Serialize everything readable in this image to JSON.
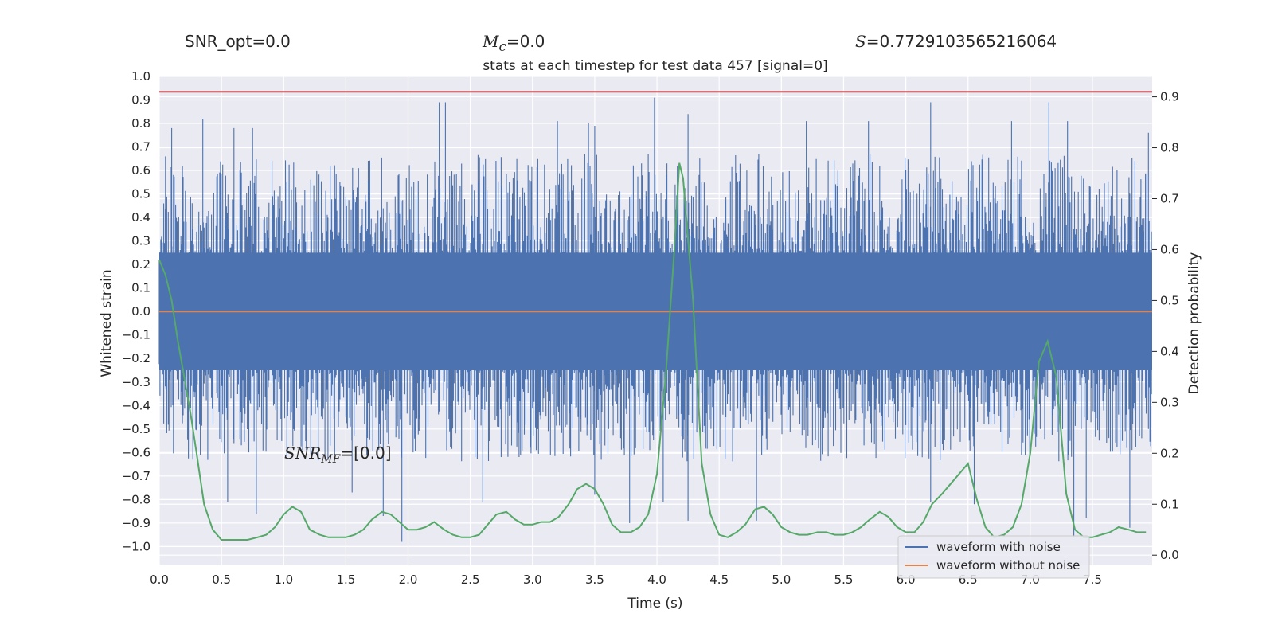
{
  "header": {
    "snr_opt": "SNR_opt=0.0",
    "mc_symbol": "M",
    "mc_sub": "c",
    "mc_value": "=0.0",
    "s_symbol": "S",
    "s_value": "=0.7729103565216064"
  },
  "chart_data": {
    "type": "line",
    "title": "stats at each timestep for test data 457 [signal=0]",
    "xlabel": "Time (s)",
    "ylabel": "Whitened strain",
    "y2label": "Detection probability",
    "xlim": [
      0,
      7.98
    ],
    "ylim": [
      -1.08,
      1.0
    ],
    "y2lim": [
      -0.02,
      0.94
    ],
    "x_ticks": [
      "0.0",
      "0.5",
      "1.0",
      "1.5",
      "2.0",
      "2.5",
      "3.0",
      "3.5",
      "4.0",
      "4.5",
      "5.0",
      "5.5",
      "6.0",
      "6.5",
      "7.0",
      "7.5"
    ],
    "y_ticks": [
      "1.0",
      "0.9",
      "0.8",
      "0.7",
      "0.6",
      "0.5",
      "0.4",
      "0.3",
      "0.2",
      "0.1",
      "0.0",
      "−0.1",
      "−0.2",
      "−0.3",
      "−0.4",
      "−0.5",
      "−0.6",
      "−0.7",
      "−0.8",
      "−0.9",
      "−1.0"
    ],
    "y2_ticks": [
      "0.9",
      "0.8",
      "0.7",
      "0.6",
      "0.5",
      "0.4",
      "0.3",
      "0.2",
      "0.1",
      "0.0"
    ],
    "threshold": 0.91,
    "annotation": {
      "prefix": "SNR",
      "sub": "MF",
      "value": "=[0.0]"
    },
    "legend_position": "lower-right",
    "grid": true,
    "colors": {
      "noise": "#4c72b0",
      "clean": "#dd8452",
      "prob": "#55a868",
      "threshold": "#c44e52",
      "plot_bg": "#eaeaf2"
    },
    "series": [
      {
        "name": "waveform with noise",
        "axis": "left",
        "kind": "noise",
        "max_spikes": [
          [
            0.05,
            0.66
          ],
          [
            0.1,
            0.78
          ],
          [
            0.35,
            0.82
          ],
          [
            0.6,
            0.78
          ],
          [
            0.75,
            0.78
          ],
          [
            2.25,
            0.89
          ],
          [
            2.3,
            0.89
          ],
          [
            3.2,
            0.81
          ],
          [
            3.45,
            0.8
          ],
          [
            3.5,
            0.79
          ],
          [
            3.98,
            0.91
          ],
          [
            4.25,
            0.84
          ],
          [
            5.2,
            0.81
          ],
          [
            5.7,
            0.81
          ],
          [
            6.2,
            0.89
          ],
          [
            6.85,
            0.81
          ],
          [
            7.15,
            0.89
          ],
          [
            7.3,
            0.81
          ],
          [
            7.95,
            0.76
          ]
        ],
        "min_spikes": [
          [
            0.55,
            -0.81
          ],
          [
            0.78,
            -0.86
          ],
          [
            1.55,
            -0.77
          ],
          [
            1.8,
            -0.87
          ],
          [
            1.95,
            -0.98
          ],
          [
            2.6,
            -0.81
          ],
          [
            3.5,
            -0.78
          ],
          [
            3.78,
            -0.9
          ],
          [
            4.05,
            -0.81
          ],
          [
            4.25,
            -0.89
          ],
          [
            4.8,
            -0.89
          ],
          [
            6.2,
            -0.81
          ],
          [
            6.55,
            -0.82
          ],
          [
            7.35,
            -0.96
          ],
          [
            7.45,
            -0.88
          ],
          [
            7.8,
            -0.92
          ]
        ]
      },
      {
        "name": "waveform without noise",
        "axis": "left",
        "x": [
          0,
          7.98
        ],
        "y": [
          0,
          0
        ]
      },
      {
        "name": "detection probability",
        "axis": "right",
        "x": [
          0,
          0.05,
          0.1,
          0.15,
          0.2,
          0.25,
          0.3,
          0.36,
          0.43,
          0.5,
          0.57,
          0.64,
          0.71,
          0.79,
          0.86,
          0.93,
          1.0,
          1.07,
          1.14,
          1.21,
          1.29,
          1.36,
          1.43,
          1.5,
          1.57,
          1.64,
          1.71,
          1.79,
          1.86,
          1.93,
          2.0,
          2.07,
          2.14,
          2.21,
          2.29,
          2.36,
          2.43,
          2.5,
          2.57,
          2.64,
          2.71,
          2.79,
          2.86,
          2.93,
          3.0,
          3.07,
          3.14,
          3.21,
          3.29,
          3.36,
          3.43,
          3.5,
          3.57,
          3.64,
          3.71,
          3.79,
          3.86,
          3.93,
          4.0,
          4.07,
          4.14,
          4.18,
          4.21,
          4.29,
          4.36,
          4.43,
          4.5,
          4.57,
          4.64,
          4.71,
          4.79,
          4.86,
          4.93,
          5.0,
          5.07,
          5.14,
          5.21,
          5.29,
          5.36,
          5.43,
          5.5,
          5.57,
          5.64,
          5.71,
          5.79,
          5.86,
          5.93,
          6.0,
          6.07,
          6.14,
          6.21,
          6.29,
          6.36,
          6.43,
          6.5,
          6.57,
          6.64,
          6.71,
          6.79,
          6.86,
          6.93,
          7.0,
          7.07,
          7.14,
          7.21,
          7.29,
          7.36,
          7.43,
          7.5,
          7.57,
          7.64,
          7.71,
          7.79,
          7.86,
          7.93
        ],
        "y": [
          0.58,
          0.55,
          0.5,
          0.42,
          0.35,
          0.28,
          0.2,
          0.1,
          0.05,
          0.03,
          0.03,
          0.03,
          0.03,
          0.035,
          0.04,
          0.055,
          0.08,
          0.095,
          0.085,
          0.05,
          0.04,
          0.035,
          0.035,
          0.035,
          0.04,
          0.05,
          0.07,
          0.085,
          0.08,
          0.065,
          0.05,
          0.05,
          0.055,
          0.065,
          0.05,
          0.04,
          0.035,
          0.035,
          0.04,
          0.06,
          0.08,
          0.085,
          0.07,
          0.06,
          0.06,
          0.065,
          0.065,
          0.075,
          0.1,
          0.13,
          0.14,
          0.13,
          0.1,
          0.06,
          0.045,
          0.045,
          0.055,
          0.08,
          0.16,
          0.35,
          0.6,
          0.77,
          0.74,
          0.5,
          0.18,
          0.08,
          0.04,
          0.035,
          0.045,
          0.06,
          0.09,
          0.095,
          0.08,
          0.055,
          0.045,
          0.04,
          0.04,
          0.045,
          0.045,
          0.04,
          0.04,
          0.045,
          0.055,
          0.07,
          0.085,
          0.075,
          0.055,
          0.045,
          0.045,
          0.065,
          0.1,
          0.12,
          0.14,
          0.16,
          0.18,
          0.11,
          0.055,
          0.035,
          0.04,
          0.055,
          0.1,
          0.2,
          0.38,
          0.42,
          0.35,
          0.12,
          0.05,
          0.035,
          0.035,
          0.04,
          0.045,
          0.055,
          0.05,
          0.045,
          0.045
        ]
      }
    ]
  }
}
